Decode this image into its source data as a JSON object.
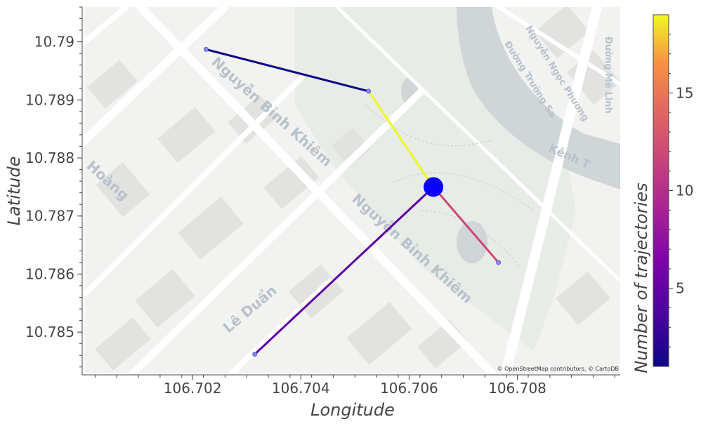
{
  "axes": {
    "xlabel": "Longitude",
    "ylabel": "Latitude",
    "colorbar_label": "Number of trajectories",
    "xticks": [
      "106.702",
      "106.704",
      "106.706",
      "106.708"
    ],
    "yticks": [
      "10.79",
      "10.789",
      "10.788",
      "10.787",
      "10.786",
      "10.785"
    ],
    "cticks": [
      "5",
      "10",
      "15"
    ]
  },
  "map": {
    "attribution": "© OpenStreetMap contributors, © CartoDB",
    "street_labels": [
      "Nguyễn Bỉnh Khiêm",
      "Nguyễn Bỉnh Khiêm",
      "Lê Duẩn",
      "Hoàng",
      "Kênh T",
      "Nguyễn Ngọc Phương",
      "Đường Trường Sa",
      "Đường Mê Linh"
    ]
  },
  "chart_data": {
    "type": "line",
    "xlim": [
      106.7,
      106.7099
    ],
    "ylim": [
      10.7843,
      10.7906
    ],
    "colorbar_range": [
      1,
      19
    ],
    "colormap": "plasma",
    "center": {
      "lon": 106.70645,
      "lat": 10.7875
    },
    "endpoints": [
      {
        "lon": 106.70225,
        "lat": 10.78987
      },
      {
        "lon": 106.70525,
        "lat": 10.78915
      },
      {
        "lon": 106.70765,
        "lat": 10.7862
      },
      {
        "lon": 106.70315,
        "lat": 10.78462
      }
    ],
    "segments": [
      {
        "from": [
          106.70225,
          10.78987
        ],
        "to": [
          106.70525,
          10.78915
        ],
        "trajectories": 1,
        "color": "#0d0887"
      },
      {
        "from": [
          106.70525,
          10.78915
        ],
        "to": [
          106.70645,
          10.7875
        ],
        "trajectories": 19,
        "color": "#f0f921"
      },
      {
        "from": [
          106.70645,
          10.7875
        ],
        "to": [
          106.70765,
          10.7862
        ],
        "trajectories": 11,
        "color": "#cc4778"
      },
      {
        "from": [
          106.70645,
          10.7875
        ],
        "to": [
          106.70315,
          10.78462
        ],
        "trajectories": 4,
        "color": "#5c01a6"
      }
    ]
  }
}
